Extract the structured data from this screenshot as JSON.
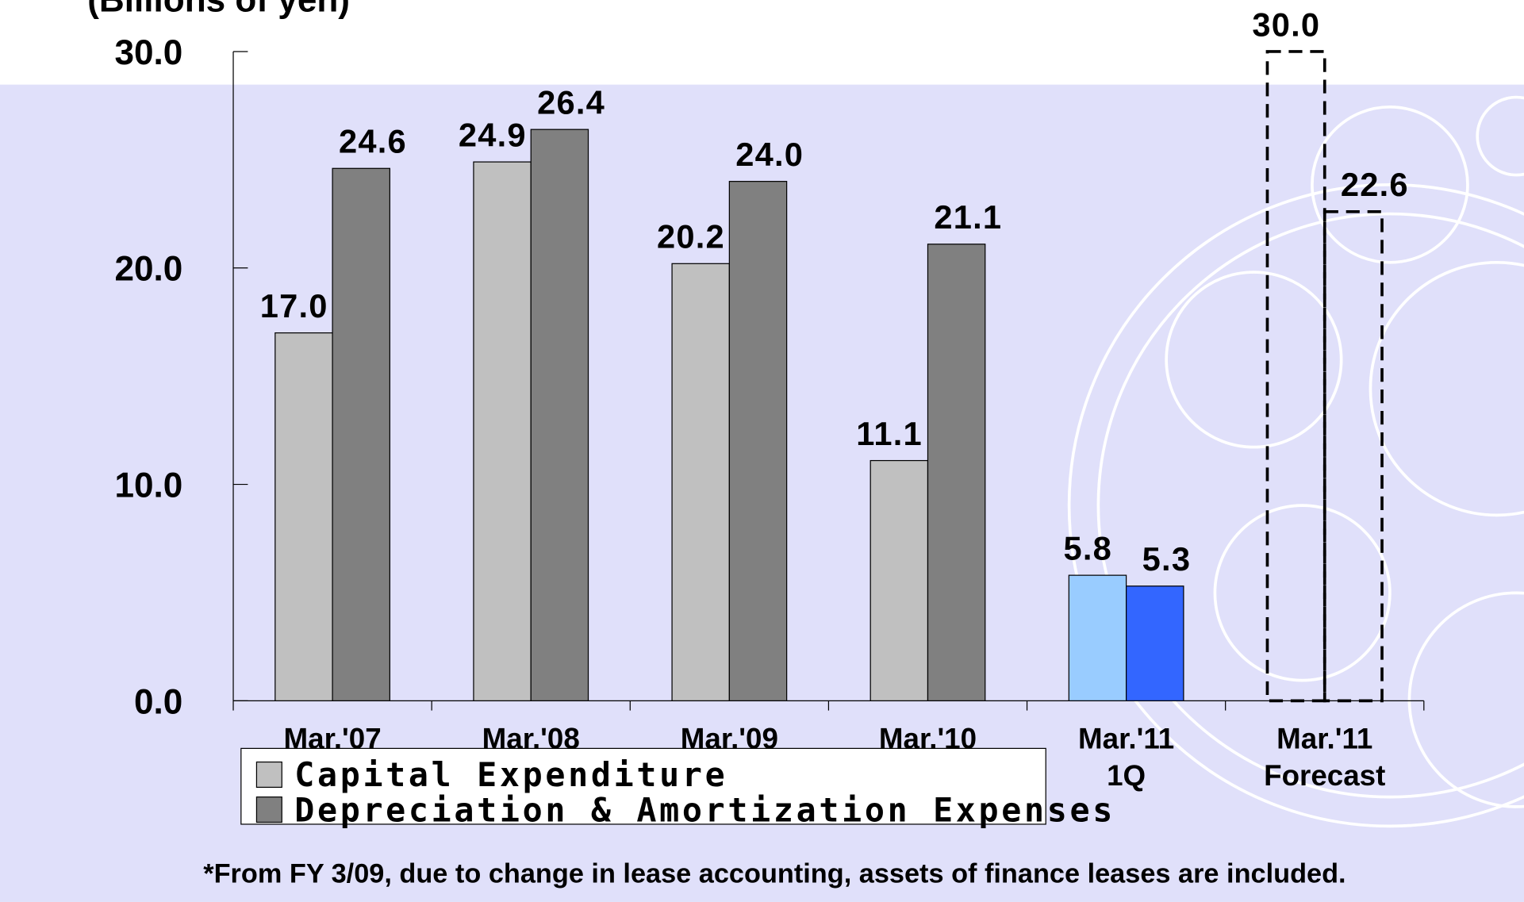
{
  "chart_data": {
    "type": "bar",
    "y_axis_label": "(Billions of yen)",
    "categories": [
      [
        "Mar.'07"
      ],
      [
        "Mar.'08"
      ],
      [
        "Mar.'09"
      ],
      [
        "Mar.'10"
      ],
      [
        "Mar.'11",
        "1Q"
      ],
      [
        "Mar.'11",
        "Forecast"
      ]
    ],
    "series": [
      {
        "name": "Capital Expenditure",
        "color": "#c0c0c0",
        "colors": [
          "#c0c0c0",
          "#c0c0c0",
          "#c0c0c0",
          "#c0c0c0",
          "#99ccff",
          "none"
        ],
        "dashed": [
          false,
          false,
          false,
          false,
          false,
          true
        ],
        "values": [
          17.0,
          24.9,
          20.2,
          11.1,
          5.8,
          30.0
        ],
        "value_labels": [
          "17.0",
          "24.9",
          "20.2",
          "11.1",
          "5.8",
          "30.0"
        ]
      },
      {
        "name": "Depreciation & Amortization Expenses",
        "color": "#808080",
        "colors": [
          "#808080",
          "#808080",
          "#808080",
          "#808080",
          "#3366ff",
          "none"
        ],
        "dashed": [
          false,
          false,
          false,
          false,
          false,
          true
        ],
        "values": [
          24.6,
          26.4,
          24.0,
          21.1,
          5.3,
          22.6
        ],
        "value_labels": [
          "24.6",
          "26.4",
          "24.0",
          "21.1",
          "5.3",
          "22.6"
        ]
      }
    ],
    "ylim": [
      0,
      30
    ],
    "yticks": [
      {
        "value": 0,
        "label": "0.0"
      },
      {
        "value": 10,
        "label": "10.0"
      },
      {
        "value": 20,
        "label": "20.0"
      },
      {
        "value": 30,
        "label": "30.0"
      }
    ],
    "legend": "bottom-left",
    "footnote": "*From FY 3/09, due to change in lease accounting, assets of finance leases are included."
  }
}
